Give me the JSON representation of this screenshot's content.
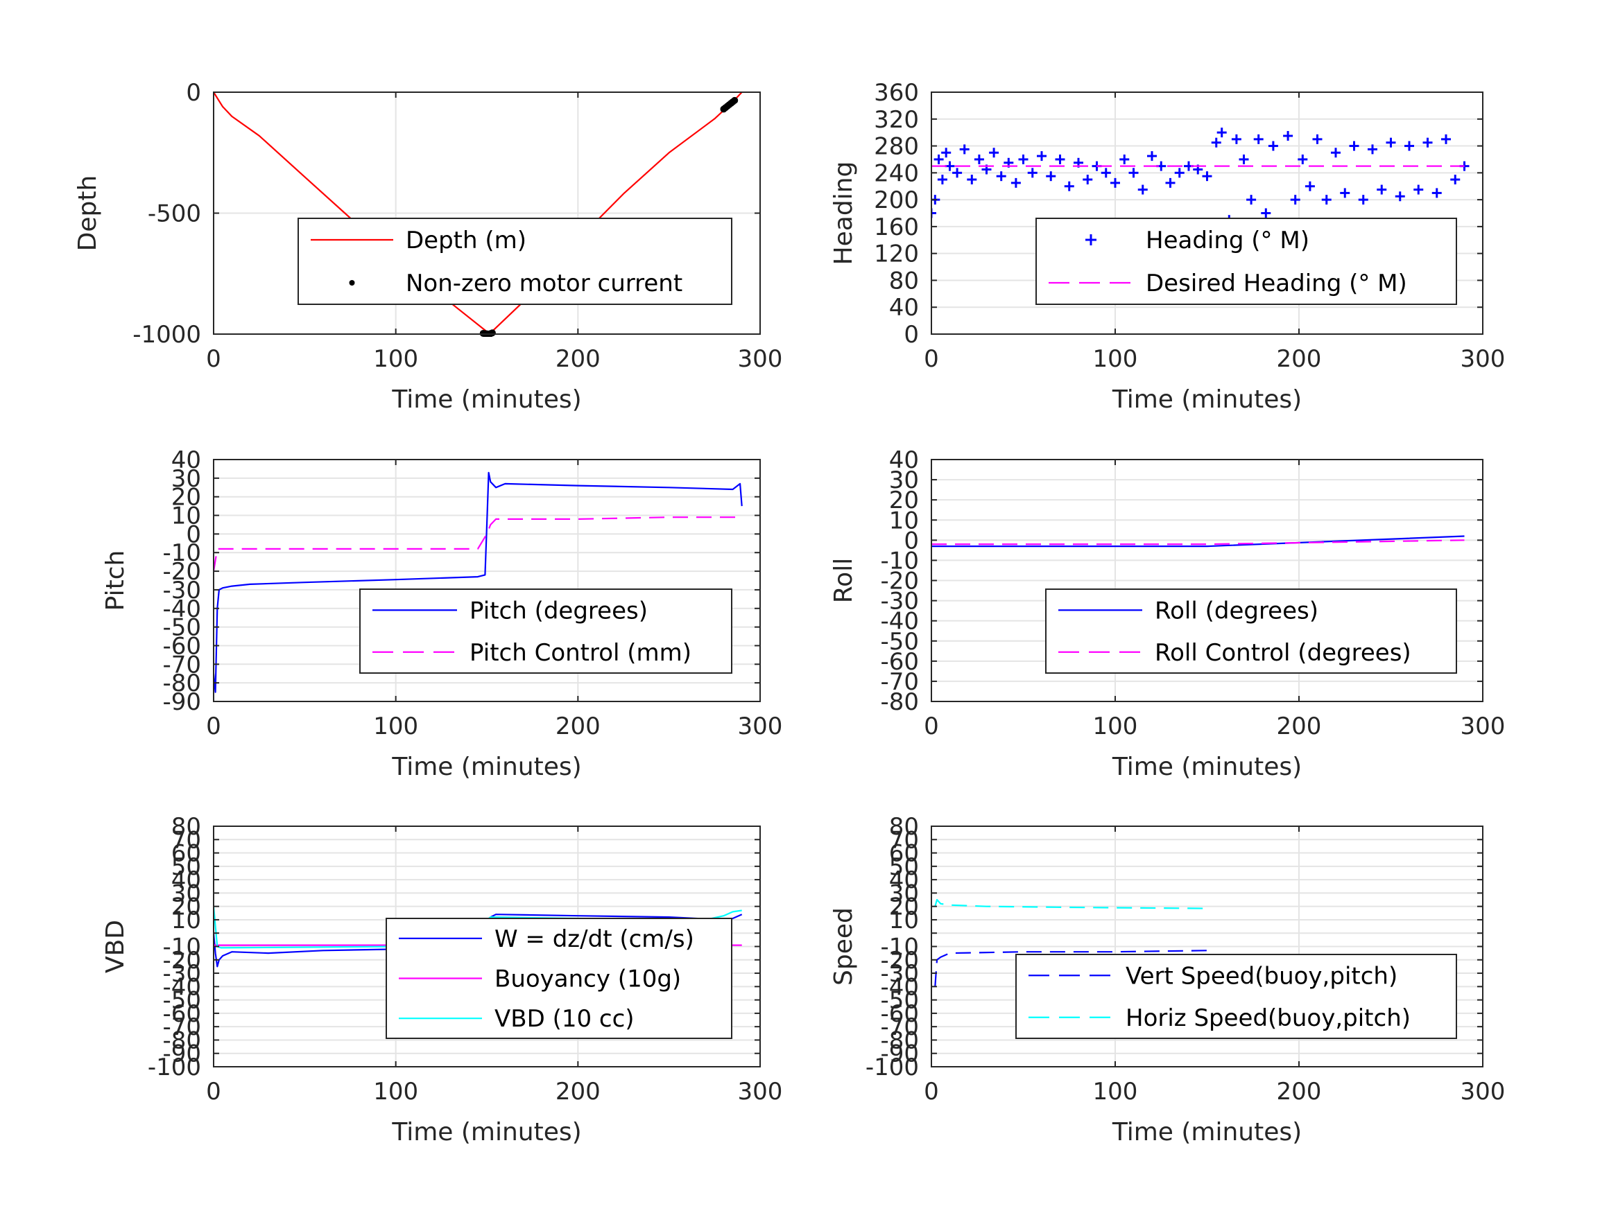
{
  "chart_data": [
    {
      "type": "line",
      "ylabel": "Depth",
      "xlabel": "Time (minutes)",
      "xlim": [
        0,
        300
      ],
      "ylim": [
        -1000,
        0
      ],
      "xticks": [
        0,
        100,
        200,
        300
      ],
      "yticks": [
        -1000,
        -500,
        0
      ],
      "grid": true,
      "legend_position": "lower-right",
      "series": [
        {
          "name": "Depth (m)",
          "color": "#ff0000",
          "style": "solid",
          "x": [
            0,
            5,
            10,
            25,
            50,
            75,
            100,
            125,
            150,
            152,
            175,
            200,
            225,
            250,
            275,
            285,
            290
          ],
          "y": [
            0,
            -60,
            -100,
            -180,
            -350,
            -520,
            -680,
            -840,
            -990,
            -995,
            -830,
            -610,
            -420,
            -250,
            -110,
            -40,
            0
          ]
        },
        {
          "name": "Non-zero motor current",
          "color": "#000000",
          "style": "marker",
          "x": [
            148,
            149,
            150,
            151,
            152,
            153,
            280,
            281,
            282,
            283,
            284,
            285,
            286
          ],
          "y": [
            -997,
            -998,
            -999,
            -1000,
            -998,
            -995,
            -70,
            -64,
            -58,
            -52,
            -46,
            -40,
            -34
          ]
        }
      ]
    },
    {
      "type": "scatter",
      "ylabel": "Heading",
      "xlabel": "Time (minutes)",
      "xlim": [
        0,
        300
      ],
      "ylim": [
        0,
        360
      ],
      "xticks": [
        0,
        100,
        200,
        300
      ],
      "yticks": [
        0,
        40,
        80,
        120,
        160,
        200,
        240,
        280,
        320,
        360
      ],
      "grid": true,
      "legend_position": "lower-right",
      "series": [
        {
          "name": "Heading (° M)",
          "color": "#0000ff",
          "style": "plus",
          "x": [
            0,
            2,
            4,
            6,
            8,
            10,
            14,
            18,
            22,
            26,
            30,
            34,
            38,
            42,
            46,
            50,
            55,
            60,
            65,
            70,
            75,
            80,
            85,
            90,
            95,
            100,
            105,
            110,
            115,
            120,
            125,
            130,
            135,
            140,
            145,
            150,
            155,
            158,
            162,
            166,
            170,
            174,
            178,
            182,
            186,
            190,
            194,
            198,
            202,
            206,
            210,
            215,
            220,
            225,
            230,
            235,
            240,
            245,
            250,
            255,
            260,
            265,
            270,
            275,
            280,
            285,
            290
          ],
          "y": [
            180,
            200,
            260,
            230,
            270,
            250,
            240,
            275,
            230,
            260,
            245,
            270,
            235,
            255,
            225,
            260,
            240,
            265,
            235,
            260,
            220,
            255,
            230,
            250,
            240,
            225,
            260,
            240,
            215,
            265,
            250,
            225,
            240,
            250,
            245,
            235,
            285,
            300,
            170,
            290,
            260,
            200,
            290,
            180,
            280,
            165,
            295,
            200,
            260,
            220,
            290,
            200,
            270,
            210,
            280,
            200,
            275,
            215,
            285,
            205,
            280,
            215,
            285,
            210,
            290,
            230,
            250
          ]
        },
        {
          "name": "Desired Heading (° M)",
          "color": "#ff00ff",
          "style": "dashed",
          "x": [
            0,
            290
          ],
          "y": [
            250,
            250
          ]
        }
      ]
    },
    {
      "type": "line",
      "ylabel": "Pitch",
      "xlabel": "Time (minutes)",
      "xlim": [
        0,
        300
      ],
      "ylim": [
        -90,
        40
      ],
      "xticks": [
        0,
        100,
        200,
        300
      ],
      "yticks": [
        -90,
        -80,
        -70,
        -60,
        -50,
        -40,
        -30,
        -20,
        -10,
        0,
        10,
        20,
        30,
        40
      ],
      "grid": true,
      "legend_position": "lower-right",
      "series": [
        {
          "name": "Pitch (degrees)",
          "color": "#0000ff",
          "style": "solid",
          "x": [
            0,
            1,
            2,
            3,
            5,
            10,
            20,
            50,
            100,
            145,
            149,
            150,
            151,
            152,
            155,
            160,
            200,
            250,
            285,
            289,
            290
          ],
          "y": [
            -75,
            -85,
            -40,
            -30,
            -29,
            -28,
            -27,
            -26,
            -24.5,
            -23,
            -22,
            5,
            33,
            28,
            25,
            27,
            26,
            25,
            24,
            27,
            15
          ]
        },
        {
          "name": "Pitch Control (mm)",
          "color": "#ff00ff",
          "style": "dashed",
          "x": [
            0,
            2,
            4,
            50,
            100,
            145,
            150,
            152,
            155,
            200,
            250,
            290
          ],
          "y": [
            -20,
            -8,
            -8,
            -8,
            -8,
            -8,
            0,
            5,
            8,
            8,
            9,
            9
          ]
        }
      ]
    },
    {
      "type": "line",
      "ylabel": "Roll",
      "xlabel": "Time (minutes)",
      "xlim": [
        0,
        300
      ],
      "ylim": [
        -80,
        40
      ],
      "xticks": [
        0,
        100,
        200,
        300
      ],
      "yticks": [
        -80,
        -70,
        -60,
        -50,
        -40,
        -30,
        -20,
        -10,
        0,
        10,
        20,
        30,
        40
      ],
      "grid": true,
      "legend_position": "lower-right",
      "series": [
        {
          "name": "Roll (degrees)",
          "color": "#0000ff",
          "style": "solid",
          "x": [
            0,
            150,
            290
          ],
          "y": [
            -3,
            -3,
            2
          ]
        },
        {
          "name": "Roll Control (degrees)",
          "color": "#ff00ff",
          "style": "dashed",
          "x": [
            0,
            150,
            290
          ],
          "y": [
            -2,
            -2,
            0
          ]
        }
      ]
    },
    {
      "type": "line",
      "ylabel": "VBD",
      "xlabel": "Time (minutes)",
      "xlim": [
        0,
        300
      ],
      "ylim": [
        -100,
        80
      ],
      "xticks": [
        0,
        100,
        200,
        300
      ],
      "yticks": [
        -100,
        -90,
        -80,
        -70,
        -60,
        -50,
        -40,
        -30,
        -20,
        -10,
        0,
        10,
        20,
        30,
        40,
        50,
        60,
        70,
        80
      ],
      "ytick_labels": [
        "-100",
        "-90",
        "-80",
        "-70",
        "-60",
        "-50",
        "-40",
        "-30",
        "-20",
        "-10",
        "",
        "10",
        "20",
        "30",
        "40",
        "50",
        "60",
        "70",
        "80"
      ],
      "grid": true,
      "legend_position": "lower-right",
      "series": [
        {
          "name": "W = dz/dt (cm/s)",
          "color": "#0000ff",
          "style": "solid",
          "x": [
            0,
            1,
            2,
            3,
            5,
            10,
            30,
            60,
            100,
            149,
            150,
            152,
            155,
            200,
            250,
            280,
            285,
            290
          ],
          "y": [
            0,
            -15,
            -25,
            -20,
            -17,
            -14,
            -15,
            -13,
            -12,
            -11,
            5,
            12,
            14,
            13,
            12,
            10,
            11,
            14
          ]
        },
        {
          "name": "Buoyancy (10g)",
          "color": "#ff00ff",
          "style": "solid",
          "x": [
            0,
            290
          ],
          "y": [
            -9,
            -9
          ]
        },
        {
          "name": "VBD (10 cc)",
          "color": "#00ffff",
          "style": "solid",
          "x": [
            0,
            2,
            4,
            100,
            148,
            150,
            152,
            200,
            270,
            280,
            285,
            290
          ],
          "y": [
            20,
            -10,
            -11,
            -10,
            -10,
            10,
            12,
            11,
            10,
            13,
            16,
            17
          ]
        }
      ]
    },
    {
      "type": "line",
      "ylabel": "Speed",
      "xlabel": "Time (minutes)",
      "xlim": [
        0,
        300
      ],
      "ylim": [
        -100,
        80
      ],
      "xticks": [
        0,
        100,
        200,
        300
      ],
      "yticks": [
        -100,
        -90,
        -80,
        -70,
        -60,
        -50,
        -40,
        -30,
        -20,
        -10,
        0,
        10,
        20,
        30,
        40,
        50,
        60,
        70,
        80
      ],
      "ytick_labels": [
        "-100",
        "-90",
        "-80",
        "-70",
        "-60",
        "-50",
        "-40",
        "-30",
        "-20",
        "-10",
        "",
        "10",
        "20",
        "30",
        "40",
        "50",
        "60",
        "70",
        "80"
      ],
      "grid": true,
      "legend_position": "lower-right",
      "series": [
        {
          "name": "Vert Speed(buoy,pitch)",
          "color": "#0000ff",
          "style": "dashed",
          "x": [
            2,
            3,
            5,
            10,
            50,
            100,
            150
          ],
          "y": [
            -40,
            -20,
            -18,
            -15,
            -14,
            -14,
            -13
          ]
        },
        {
          "name": "Horiz Speed(buoy,pitch)",
          "color": "#00ffff",
          "style": "dashed",
          "x": [
            2,
            3,
            5,
            10,
            30,
            60,
            100,
            150
          ],
          "y": [
            20,
            25,
            22,
            21,
            20,
            19.5,
            19,
            18.5
          ]
        }
      ]
    }
  ]
}
